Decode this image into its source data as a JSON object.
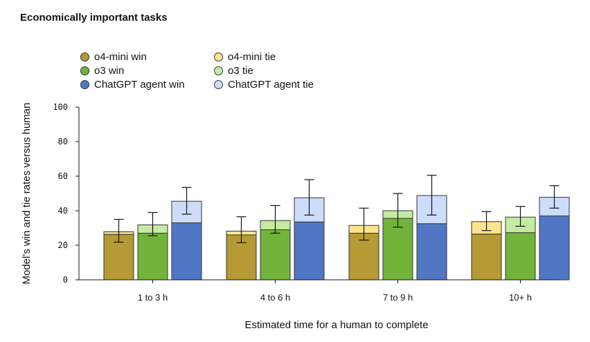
{
  "title": "Economically important tasks",
  "legend": {
    "o4mini_win": "o4-mini win",
    "o4mini_tie": "o4-mini tie",
    "o3_win": "o3 win",
    "o3_tie": "o3 tie",
    "agent_win": "ChatGPT agent win",
    "agent_tie": "ChatGPT agent tie"
  },
  "colors": {
    "o4mini_win": "#b59a35",
    "o4mini_tie": "#fbe48c",
    "o3_win": "#72b43a",
    "o3_tie": "#c5eba2",
    "agent_win": "#5177c4",
    "agent_tie": "#cddcfa"
  },
  "chart_data": {
    "type": "bar",
    "title": "Economically important tasks",
    "xlabel": "Estimated time for a human to complete",
    "ylabel": "Model's win and tie rates versus human",
    "ylim": [
      0,
      100
    ],
    "yticks": [
      0,
      20,
      40,
      60,
      80,
      100
    ],
    "grid": false,
    "legend_position": "top-left",
    "categories": [
      "1 to 3 h",
      "4 to 6 h",
      "7 to 9 h",
      "10+ h"
    ],
    "series": [
      {
        "key": "o4mini",
        "name": "o4-mini",
        "win": [
          26.3,
          26.0,
          27.0,
          26.5
        ],
        "tie": [
          1.5,
          2.2,
          4.5,
          7.2
        ],
        "error_low": [
          21.8,
          21.5,
          23.0,
          28.5
        ],
        "error_high": [
          35.0,
          36.5,
          41.5,
          39.5
        ]
      },
      {
        "key": "o3",
        "name": "o3",
        "win": [
          27.0,
          29.0,
          35.6,
          27.3
        ],
        "tie": [
          4.8,
          5.3,
          4.4,
          9.0
        ],
        "error_low": [
          25.5,
          27.0,
          30.5,
          31.0
        ],
        "error_high": [
          39.0,
          43.0,
          50.0,
          42.5
        ]
      },
      {
        "key": "agent",
        "name": "ChatGPT agent",
        "win": [
          33.0,
          33.5,
          32.5,
          37.0
        ],
        "tie": [
          12.5,
          14.0,
          16.3,
          10.8
        ],
        "error_low": [
          38.0,
          37.5,
          37.5,
          41.5
        ],
        "error_high": [
          53.5,
          58.0,
          60.5,
          54.5
        ]
      }
    ]
  }
}
